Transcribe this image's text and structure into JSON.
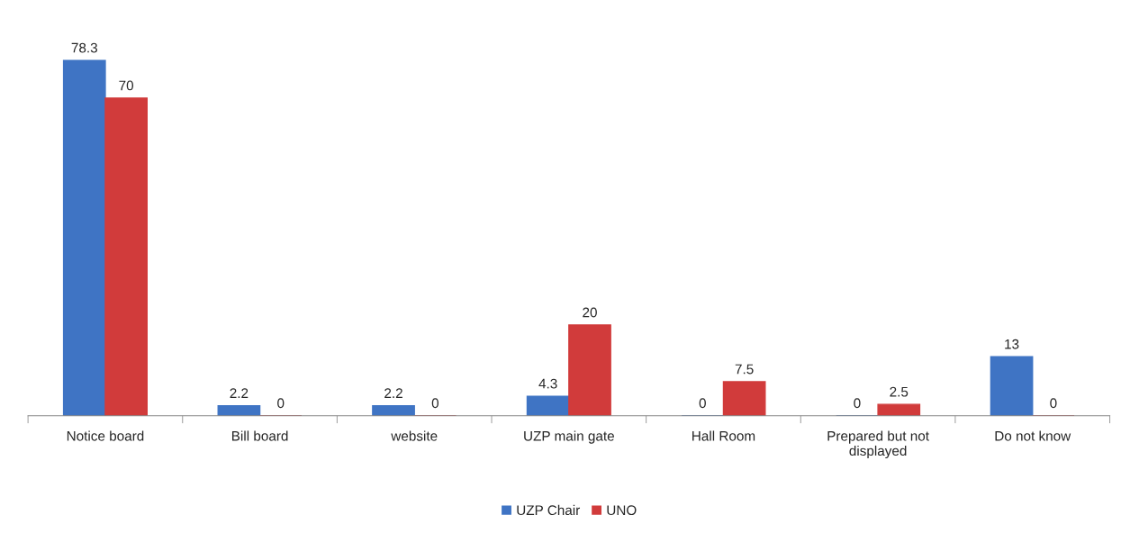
{
  "chart_data": {
    "type": "bar",
    "categories": [
      "Notice board",
      "Bill board",
      "website",
      "UZP main gate",
      "Hall Room",
      "Prepared but not\ndisplayed",
      "Do not know"
    ],
    "series": [
      {
        "name": "UZP Chair",
        "color": "#3f74c4",
        "values": [
          78.3,
          2.2,
          2.2,
          4.3,
          0,
          0,
          13
        ]
      },
      {
        "name": "UNO",
        "color": "#d13b3b",
        "values": [
          70,
          0,
          0,
          20,
          7.5,
          2.5,
          0
        ]
      }
    ],
    "data_labels": true,
    "legend": "bottom",
    "grid": false
  }
}
